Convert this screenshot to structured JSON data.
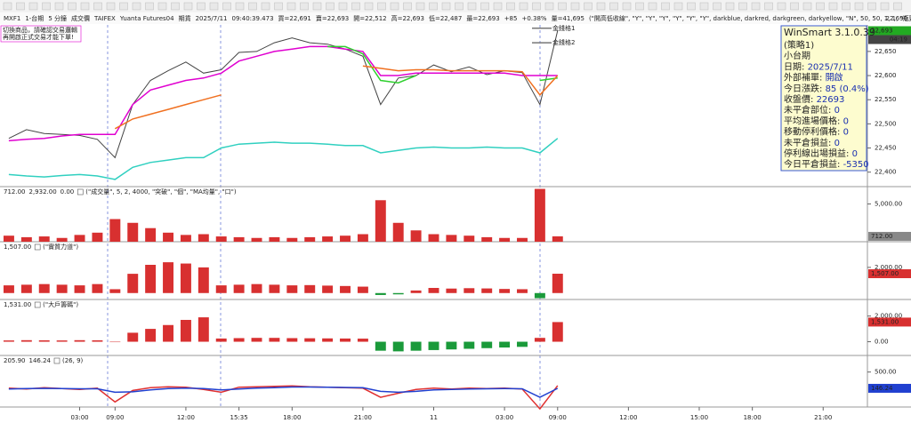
{
  "header": {
    "items": [
      {
        "text": "MXF1",
        "color": "#222"
      },
      {
        "text": "1-台期",
        "color": "#222"
      },
      {
        "text": "5 分鐘",
        "color": "#222"
      },
      {
        "text": "成交價",
        "color": "#222"
      },
      {
        "text": "TAIFEX",
        "color": "#222"
      },
      {
        "text": "Yuanta Futures04",
        "color": "#222"
      },
      {
        "text": "期貨",
        "color": "#222"
      },
      {
        "text": "2025/7/11",
        "color": "#222"
      },
      {
        "text": "09:40:39.473",
        "color": "#222"
      },
      {
        "text": "買=22,691",
        "color": "#222"
      },
      {
        "text": "賣=22,693",
        "color": "#222"
      },
      {
        "text": "開=22,512",
        "color": "#d02020"
      },
      {
        "text": "高=22,693",
        "color": "#222"
      },
      {
        "text": "低=22,487",
        "color": "#222"
      },
      {
        "text": "最=22,693",
        "color": "#20a020"
      },
      {
        "text": "+85",
        "color": "#20a020"
      },
      {
        "text": "+0.38%",
        "color": "#20a020"
      },
      {
        "text": "量=41,695",
        "color": "#222"
      },
      {
        "text": "(\"開高低收線\", \"Y\", \"Y\", \"Y\", \"Y\", \"Y\", \"Y\", darkblue, darkred, darkgreen, darkyellow, \"N\", 50, 50, 1, 1, \"瓶頸贏商點\", \"瓶頸\")",
        "color": "#222"
      }
    ],
    "right": {
      "text": "22,690",
      "color": "#d02020"
    }
  },
  "note": [
    "切換商品，請確認交易邏輯",
    "再開啟正式交易才能下單!"
  ],
  "info_box": {
    "title": "WinSmart 3.1.0.39",
    "rows": [
      {
        "label": "(策略1)",
        "value": ""
      },
      {
        "label": "小台期",
        "value": ""
      },
      {
        "label": "日期: ",
        "value": "2025/7/11"
      },
      {
        "label": "外部補單: ",
        "value": "開啟"
      },
      {
        "label": "今日漲跌: ",
        "value": "85 (0.4%)"
      },
      {
        "label": "收盤價: ",
        "value": "22693"
      },
      {
        "label": "未平倉部位: ",
        "value": "0"
      },
      {
        "label": "平均進場價格: ",
        "value": "0"
      },
      {
        "label": "移動停利價格: ",
        "value": "0"
      },
      {
        "label": "未平倉損益: ",
        "value": "0"
      },
      {
        "label": "停利線出場損益: ",
        "value": "0"
      },
      {
        "label": "今日平倉損益: ",
        "value": "-5350"
      }
    ]
  },
  "chart_data": [
    {
      "type": "line",
      "ylim": [
        22370,
        22705
      ],
      "yticks": [
        {
          "value": 22400,
          "label": "22,400"
        },
        {
          "value": 22450,
          "label": "22,450"
        },
        {
          "value": 22500,
          "label": "22,500"
        },
        {
          "value": 22550,
          "label": "22,550"
        },
        {
          "value": 22600,
          "label": "22,600"
        },
        {
          "value": 22650,
          "label": "22,650"
        }
      ],
      "last_value_label": "22,693",
      "countdown": "04:19",
      "last_color": "#22aa22",
      "annotations": [
        {
          "text": "金錢格1",
          "value": 22698
        },
        {
          "text": "金錢格2",
          "value": 22668
        }
      ],
      "series": [
        {
          "color": "#444444",
          "values": [
            22470,
            22488,
            22480,
            22478,
            22476,
            22468,
            22430,
            22540,
            22590,
            22610,
            22628,
            22605,
            22612,
            22648,
            22650,
            22668,
            22678,
            22668,
            22665,
            22655,
            22640,
            22540,
            22595,
            22600,
            22622,
            22608,
            22618,
            22602,
            22610,
            22606,
            22540,
            22693,
            null,
            null,
            null,
            null,
            null,
            null,
            null,
            null,
            null,
            null,
            null,
            null,
            null,
            null,
            null,
            null,
            null
          ]
        },
        {
          "color": "#e000d0",
          "values": [
            22465,
            22468,
            22470,
            22475,
            22478,
            22478,
            22478,
            22540,
            22570,
            22580,
            22590,
            22595,
            22605,
            22630,
            22640,
            22650,
            22655,
            22660,
            22660,
            22655,
            22650,
            22600,
            22600,
            22605,
            22605,
            22605,
            22605,
            22605,
            22605,
            22600,
            22600,
            22600,
            null,
            null,
            null,
            null,
            null,
            null,
            null,
            null,
            null,
            null,
            null,
            null,
            null,
            null,
            null,
            null,
            null
          ]
        },
        {
          "color": "#30d030",
          "values": [
            null,
            null,
            null,
            null,
            null,
            null,
            null,
            null,
            null,
            null,
            null,
            null,
            null,
            null,
            null,
            null,
            null,
            null,
            22660,
            22660,
            22645,
            22590,
            22585,
            22600,
            null,
            null,
            null,
            null,
            null,
            null,
            22590,
            22595,
            null,
            null,
            null,
            null,
            null,
            null,
            null,
            null,
            null,
            null,
            null,
            null,
            null,
            null,
            null,
            null,
            null
          ]
        },
        {
          "color": "#f07020",
          "values": [
            null,
            null,
            null,
            null,
            null,
            null,
            22490,
            22510,
            22520,
            22530,
            22540,
            22550,
            22560,
            null,
            null,
            null,
            null,
            null,
            null,
            null,
            22620,
            22615,
            22610,
            22612,
            22612,
            22610,
            22610,
            22610,
            22610,
            22608,
            22560,
            22600,
            null,
            null,
            null,
            null,
            null,
            null,
            null,
            null,
            null,
            null,
            null,
            null,
            null,
            null,
            null,
            null,
            null
          ]
        },
        {
          "color": "#30d0c0",
          "values": [
            22395,
            22392,
            22390,
            22393,
            22395,
            22392,
            22385,
            22410,
            22420,
            22425,
            22430,
            22430,
            22450,
            22458,
            22460,
            22462,
            22460,
            22460,
            22458,
            22455,
            22455,
            22440,
            22445,
            22450,
            22452,
            22450,
            22450,
            22452,
            22450,
            22450,
            22440,
            22470,
            null,
            null,
            null,
            null,
            null,
            null,
            null,
            null,
            null,
            null,
            null,
            null,
            null,
            null,
            null,
            null,
            null
          ]
        }
      ]
    },
    {
      "type": "bar",
      "ylim": [
        0,
        7300
      ],
      "yticks": [
        {
          "value": 5000,
          "label": "5,000.00"
        }
      ],
      "header": [
        {
          "text": "712.00",
          "color": "#d02020"
        },
        {
          "text": "2,932.00",
          "color": "#f07020"
        },
        {
          "text": "0.00",
          "color": "#888888"
        },
        {
          "text": "(\"成交量\", 5, 2, 4000, \"突破\", \"個\", \"MA均量\", \"口\")",
          "color": "#222"
        }
      ],
      "last_value_label": "712.00",
      "last_color": "#888888",
      "series": [
        {
          "color": "#d83030",
          "negative_color": "#1a9a3a",
          "values": [
            800,
            600,
            700,
            500,
            900,
            1200,
            3000,
            2500,
            1800,
            1200,
            900,
            1000,
            700,
            600,
            500,
            600,
            500,
            600,
            700,
            800,
            1000,
            5500,
            2500,
            1500,
            1000,
            900,
            800,
            600,
            500,
            500,
            7000,
            712,
            null,
            null,
            null,
            null,
            null,
            null,
            null,
            null,
            null,
            null,
            null,
            null,
            null,
            null,
            null,
            null,
            null
          ]
        }
      ]
    },
    {
      "type": "bar",
      "ylim": [
        -500,
        4000
      ],
      "yticks": [
        {
          "value": 2000,
          "label": "2,000.00"
        }
      ],
      "header": [
        {
          "text": "1,507.00",
          "color": "#d02020"
        },
        {
          "text": "(\"實質力道\")",
          "color": "#222"
        }
      ],
      "last_value_label": "1,507.00",
      "last_color": "#d83030",
      "series": [
        {
          "color": "#d83030",
          "negative_color": "#1a9a3a",
          "values": [
            600,
            650,
            700,
            650,
            600,
            700,
            300,
            1500,
            2200,
            2400,
            2300,
            2000,
            600,
            650,
            700,
            650,
            600,
            620,
            580,
            550,
            500,
            -150,
            -100,
            200,
            400,
            350,
            380,
            360,
            320,
            300,
            -400,
            1507,
            null,
            null,
            null,
            null,
            null,
            null,
            null,
            null,
            null,
            null,
            null,
            null,
            null,
            null,
            null,
            null,
            null
          ]
        }
      ]
    },
    {
      "type": "bar",
      "ylim": [
        -1070,
        3290
      ],
      "yticks": [
        {
          "value": 0,
          "label": "0.00"
        },
        {
          "value": 2000,
          "label": "2,000.00"
        }
      ],
      "header": [
        {
          "text": "1,531.00",
          "color": "#d02020"
        },
        {
          "text": "(\"大戶籌碼\")",
          "color": "#222"
        }
      ],
      "last_value_label": "1,531.00",
      "last_color": "#d83030",
      "series": [
        {
          "color": "#d83030",
          "negative_color": "#1a9a3a",
          "values": [
            100,
            120,
            110,
            100,
            120,
            110,
            0,
            700,
            1000,
            1300,
            1700,
            1900,
            250,
            280,
            300,
            300,
            280,
            270,
            260,
            250,
            240,
            -700,
            -750,
            -700,
            -650,
            -600,
            -550,
            -500,
            -450,
            -400,
            300,
            1531,
            null,
            null,
            null,
            null,
            null,
            null,
            null,
            null,
            null,
            null,
            null,
            null,
            null,
            null,
            null,
            null,
            null
          ]
        }
      ]
    },
    {
      "type": "line",
      "ylim": [
        -260,
        860
      ],
      "yticks": [
        {
          "value": 500,
          "label": "500.00"
        }
      ],
      "header": [
        {
          "text": "205.90",
          "color": "#d02020"
        },
        {
          "text": "146.24",
          "color": "#2040d0"
        },
        {
          "text": "(26, 9)",
          "color": "#222"
        }
      ],
      "last_value_label": "146.24",
      "last_color": "#2040d0",
      "last_series": 1,
      "categories": [
        null,
        null,
        null,
        null,
        "03:00",
        null,
        "09:00",
        null,
        null,
        null,
        "12:00",
        null,
        null,
        "15:35",
        null,
        null,
        "18:00",
        null,
        null,
        null,
        "21:00",
        null,
        null,
        null,
        "11",
        null,
        null,
        null,
        "03:00",
        null,
        null,
        "09:00",
        null,
        null,
        null,
        "12:00",
        null,
        null,
        null,
        "15:00",
        null,
        null,
        "18:00",
        null,
        null,
        null,
        "21:00",
        null,
        null
      ],
      "series": [
        {
          "color": "#e03030",
          "values": [
            150,
            130,
            160,
            140,
            120,
            150,
            -150,
            100,
            160,
            180,
            170,
            120,
            60,
            170,
            180,
            190,
            200,
            180,
            170,
            160,
            150,
            -50,
            40,
            120,
            150,
            130,
            150,
            140,
            150,
            130,
            -300,
            205.9,
            null,
            null,
            null,
            null,
            null,
            null,
            null,
            null,
            null,
            null,
            null,
            null,
            null,
            null,
            null,
            null,
            null
          ]
        },
        {
          "color": "#2040d0",
          "values": [
            130,
            140,
            145,
            140,
            135,
            135,
            60,
            70,
            110,
            140,
            150,
            140,
            110,
            130,
            150,
            160,
            175,
            175,
            170,
            165,
            160,
            80,
            60,
            80,
            110,
            120,
            130,
            135,
            140,
            135,
            -50,
            146.24,
            null,
            null,
            null,
            null,
            null,
            null,
            null,
            null,
            null,
            null,
            null,
            null,
            null,
            null,
            null,
            null,
            null
          ]
        }
      ]
    }
  ]
}
